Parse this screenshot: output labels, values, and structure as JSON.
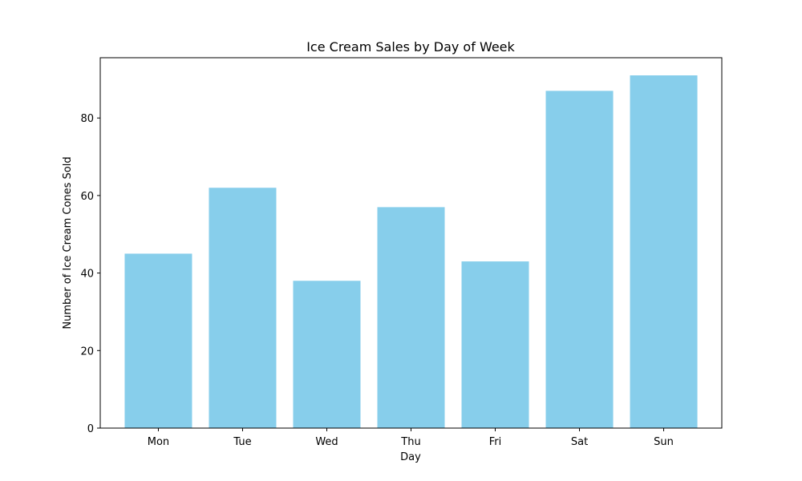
{
  "chart_data": {
    "type": "bar",
    "title": "Ice Cream Sales by Day of Week",
    "xlabel": "Day",
    "ylabel": "Number of Ice Cream Cones Sold",
    "categories": [
      "Mon",
      "Tue",
      "Wed",
      "Thu",
      "Fri",
      "Sat",
      "Sun"
    ],
    "values": [
      45,
      62,
      38,
      57,
      43,
      87,
      91
    ],
    "ylim": [
      0,
      95.55
    ],
    "yticks": [
      0,
      20,
      40,
      60,
      80
    ],
    "grid": false,
    "bar_color": "#87ceeb"
  }
}
